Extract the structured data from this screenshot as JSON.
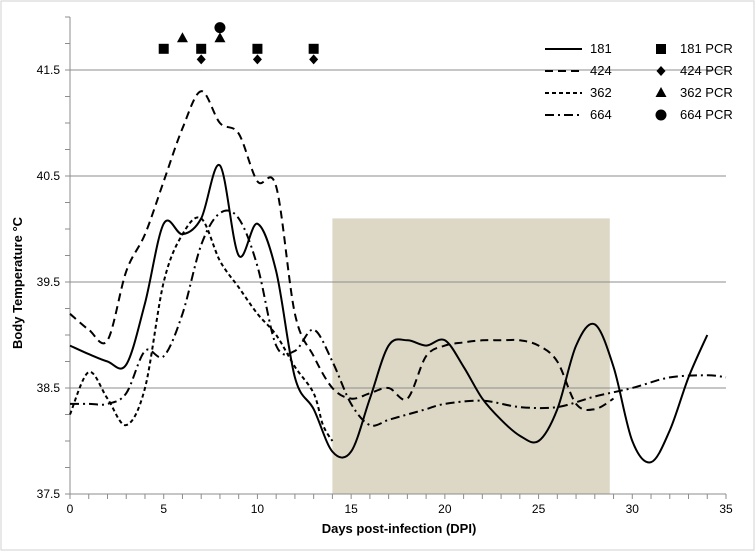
{
  "chart_data": {
    "type": "line",
    "title": "",
    "xlabel": "Days post-infection (DPI)",
    "ylabel": "Body Temperature °C",
    "xlim": [
      0,
      35
    ],
    "ylim": [
      37.5,
      42.0
    ],
    "x_ticks": [
      0,
      5,
      10,
      15,
      20,
      25,
      30,
      35
    ],
    "y_ticks": [
      37.5,
      38.5,
      39.5,
      40.5,
      41.5
    ],
    "y_gridlines": [
      38.5,
      39.5,
      40.5,
      41.5
    ],
    "grid": true,
    "legend_position": "top-right",
    "shaded_region": {
      "x": [
        14,
        28.8
      ],
      "y": [
        37.5,
        40.1
      ],
      "color": "#ddd8c6"
    },
    "series": [
      {
        "name": "181",
        "dash": "solid",
        "points": [
          [
            0,
            38.9
          ],
          [
            1,
            38.82
          ],
          [
            2,
            38.75
          ],
          [
            3,
            38.72
          ],
          [
            4,
            39.3
          ],
          [
            5,
            40.05
          ],
          [
            6,
            39.95
          ],
          [
            7,
            40.1
          ],
          [
            8,
            40.6
          ],
          [
            9,
            39.75
          ],
          [
            10,
            40.05
          ],
          [
            11,
            39.6
          ],
          [
            12,
            38.6
          ],
          [
            13,
            38.3
          ],
          [
            14,
            37.9
          ],
          [
            15,
            37.9
          ],
          [
            16,
            38.4
          ],
          [
            17,
            38.9
          ],
          [
            18,
            38.95
          ],
          [
            19,
            38.9
          ],
          [
            20,
            38.95
          ],
          [
            21,
            38.7
          ],
          [
            22,
            38.4
          ],
          [
            23,
            38.2
          ],
          [
            24,
            38.05
          ],
          [
            25,
            38.0
          ],
          [
            26,
            38.3
          ],
          [
            27,
            38.9
          ],
          [
            28,
            39.1
          ],
          [
            29,
            38.7
          ],
          [
            30,
            38.0
          ],
          [
            31,
            37.8
          ],
          [
            32,
            38.1
          ],
          [
            33,
            38.6
          ],
          [
            34,
            39.0
          ]
        ]
      },
      {
        "name": "424",
        "dash": "long",
        "points": [
          [
            0,
            39.2
          ],
          [
            1,
            39.05
          ],
          [
            2,
            38.95
          ],
          [
            3,
            39.6
          ],
          [
            4,
            39.95
          ],
          [
            5,
            40.45
          ],
          [
            6,
            40.95
          ],
          [
            7,
            41.3
          ],
          [
            8,
            41.0
          ],
          [
            9,
            40.9
          ],
          [
            10,
            40.45
          ],
          [
            11,
            40.4
          ],
          [
            12,
            39.2
          ],
          [
            13,
            38.8
          ],
          [
            14,
            38.5
          ],
          [
            15,
            38.4
          ],
          [
            16,
            38.45
          ],
          [
            17,
            38.5
          ],
          [
            18,
            38.4
          ],
          [
            19,
            38.8
          ],
          [
            20,
            38.9
          ],
          [
            21,
            38.93
          ],
          [
            22,
            38.95
          ],
          [
            23,
            38.95
          ],
          [
            24,
            38.95
          ],
          [
            25,
            38.9
          ],
          [
            26,
            38.75
          ],
          [
            27,
            38.35
          ],
          [
            28,
            38.3
          ],
          [
            29,
            38.4
          ]
        ]
      },
      {
        "name": "362",
        "dash": "short",
        "points": [
          [
            0,
            38.25
          ],
          [
            1,
            38.65
          ],
          [
            2,
            38.4
          ],
          [
            3,
            38.15
          ],
          [
            4,
            38.5
          ],
          [
            5,
            39.5
          ],
          [
            6,
            39.95
          ],
          [
            7,
            40.1
          ],
          [
            8,
            39.7
          ],
          [
            9,
            39.45
          ],
          [
            10,
            39.2
          ],
          [
            11,
            39.0
          ],
          [
            12,
            38.7
          ],
          [
            13,
            38.45
          ],
          [
            13.5,
            38.15
          ],
          [
            14,
            38.0
          ]
        ]
      },
      {
        "name": "664",
        "dash": "dashdot",
        "points": [
          [
            0,
            38.35
          ],
          [
            1,
            38.35
          ],
          [
            2,
            38.35
          ],
          [
            3,
            38.45
          ],
          [
            4,
            38.85
          ],
          [
            5,
            38.8
          ],
          [
            6,
            39.2
          ],
          [
            7,
            39.85
          ],
          [
            8,
            40.15
          ],
          [
            9,
            40.1
          ],
          [
            10,
            39.65
          ],
          [
            11,
            38.9
          ],
          [
            12,
            38.85
          ],
          [
            13,
            39.05
          ],
          [
            14,
            38.75
          ],
          [
            15,
            38.35
          ],
          [
            16,
            38.15
          ],
          [
            17,
            38.2
          ],
          [
            18,
            38.25
          ],
          [
            19,
            38.3
          ],
          [
            20,
            38.35
          ],
          [
            22,
            38.38
          ],
          [
            24,
            38.32
          ],
          [
            26,
            38.32
          ],
          [
            28,
            38.42
          ],
          [
            30,
            38.5
          ],
          [
            32,
            38.6
          ],
          [
            34,
            38.62
          ],
          [
            35,
            38.6
          ]
        ]
      }
    ],
    "pcr_markers": [
      {
        "name": "181 PCR",
        "marker": "square",
        "points": [
          [
            5,
            41.7
          ],
          [
            7,
            41.7
          ],
          [
            10,
            41.7
          ],
          [
            13,
            41.7
          ]
        ]
      },
      {
        "name": "424 PCR",
        "marker": "diamond",
        "points": [
          [
            7,
            41.6
          ],
          [
            10,
            41.6
          ],
          [
            13,
            41.6
          ]
        ]
      },
      {
        "name": "362 PCR",
        "marker": "triangle",
        "points": [
          [
            6,
            41.8
          ],
          [
            8,
            41.8
          ]
        ]
      },
      {
        "name": "664 PCR",
        "marker": "circle",
        "points": [
          [
            8,
            41.9
          ]
        ]
      }
    ]
  }
}
